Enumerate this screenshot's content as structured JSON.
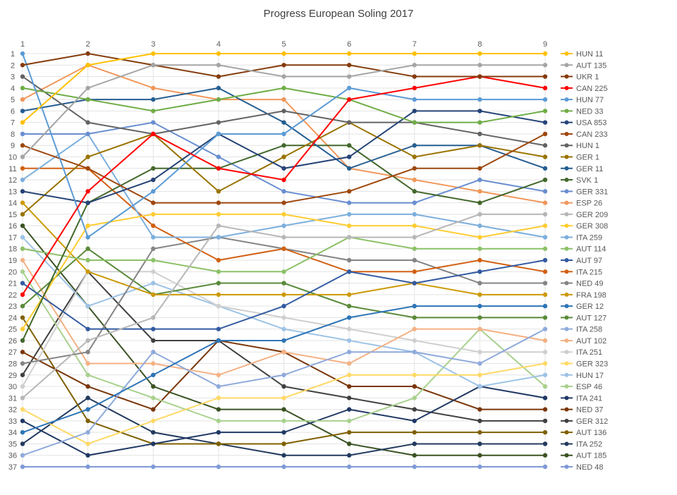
{
  "chart_data": {
    "type": "line",
    "title": "Progress European Soling 2017",
    "x": [
      1,
      2,
      3,
      4,
      5,
      6,
      7,
      8,
      9
    ],
    "ylim": [
      1,
      37
    ],
    "y_inverted": true,
    "y_ticks": [
      1,
      2,
      3,
      4,
      5,
      6,
      7,
      8,
      9,
      10,
      11,
      12,
      13,
      14,
      15,
      16,
      17,
      18,
      19,
      20,
      21,
      22,
      23,
      24,
      25,
      26,
      27,
      28,
      29,
      30,
      31,
      32,
      33,
      34,
      35,
      36,
      37
    ],
    "grid": true,
    "legend_position": "right",
    "series": [
      {
        "name": "HUN 11",
        "color": "#ffc000",
        "values": [
          7,
          2,
          1,
          1,
          1,
          1,
          1,
          1,
          1
        ]
      },
      {
        "name": "AUT 135",
        "color": "#a5a5a5",
        "values": [
          10,
          4,
          2,
          2,
          3,
          3,
          2,
          2,
          2
        ]
      },
      {
        "name": "UKR 1",
        "color": "#843c0c",
        "values": [
          2,
          1,
          2,
          3,
          2,
          2,
          3,
          3,
          3
        ]
      },
      {
        "name": "CAN 225",
        "color": "#ff0000",
        "values": [
          22,
          13,
          8,
          11,
          12,
          5,
          4,
          3,
          4
        ]
      },
      {
        "name": "HUN 77",
        "color": "#5b9bd5",
        "values": [
          1,
          17,
          13,
          8,
          8,
          4,
          5,
          5,
          5
        ]
      },
      {
        "name": "NED 33",
        "color": "#70ad47",
        "values": [
          4,
          5,
          6,
          5,
          4,
          5,
          7,
          7,
          6
        ]
      },
      {
        "name": "USA 853",
        "color": "#264478",
        "values": [
          13,
          14,
          12,
          8,
          11,
          10,
          6,
          6,
          7
        ]
      },
      {
        "name": "CAN 233",
        "color": "#9e480e",
        "values": [
          9,
          11,
          14,
          14,
          14,
          13,
          11,
          11,
          8
        ]
      },
      {
        "name": "HUN 1",
        "color": "#636363",
        "values": [
          3,
          7,
          8,
          7,
          6,
          7,
          7,
          8,
          9
        ]
      },
      {
        "name": "GER 1",
        "color": "#997300",
        "values": [
          15,
          10,
          8,
          13,
          10,
          7,
          10,
          9,
          10
        ]
      },
      {
        "name": "GER 11",
        "color": "#255e91",
        "values": [
          6,
          5,
          5,
          4,
          7,
          11,
          9,
          9,
          11
        ]
      },
      {
        "name": "SVK 1",
        "color": "#43682b",
        "values": [
          26,
          14,
          11,
          11,
          9,
          9,
          13,
          14,
          12
        ]
      },
      {
        "name": "GER 331",
        "color": "#698ed0",
        "values": [
          8,
          8,
          7,
          10,
          13,
          14,
          14,
          12,
          13
        ]
      },
      {
        "name": "ESP 26",
        "color": "#f1975a",
        "values": [
          5,
          2,
          4,
          5,
          5,
          11,
          12,
          13,
          14
        ]
      },
      {
        "name": "GER 209",
        "color": "#b7b7b7",
        "values": [
          31,
          26,
          24,
          16,
          17,
          17,
          17,
          15,
          15
        ]
      },
      {
        "name": "GER 308",
        "color": "#ffcd33",
        "values": [
          25,
          16,
          15,
          15,
          15,
          16,
          16,
          17,
          16
        ]
      },
      {
        "name": "ITA 259",
        "color": "#7cafdd",
        "values": [
          12,
          8,
          17,
          17,
          16,
          15,
          15,
          16,
          17
        ]
      },
      {
        "name": "AUT 114",
        "color": "#8cc168",
        "values": [
          18,
          19,
          19,
          20,
          20,
          17,
          18,
          18,
          18
        ]
      },
      {
        "name": "AUT 97",
        "color": "#335aa1",
        "values": [
          21,
          25,
          25,
          25,
          23,
          20,
          21,
          20,
          19
        ]
      },
      {
        "name": "ITA 215",
        "color": "#d26012",
        "values": [
          11,
          11,
          16,
          19,
          18,
          20,
          20,
          19,
          20
        ]
      },
      {
        "name": "NED 49",
        "color": "#848484",
        "values": [
          28,
          27,
          18,
          17,
          18,
          19,
          19,
          21,
          21
        ]
      },
      {
        "name": "FRA 198",
        "color": "#cc9a06",
        "values": [
          14,
          20,
          22,
          22,
          22,
          22,
          21,
          22,
          22
        ]
      },
      {
        "name": "GER 12",
        "color": "#2e75b6",
        "values": [
          34,
          32,
          29,
          26,
          26,
          24,
          23,
          23,
          23
        ]
      },
      {
        "name": "AUT 127",
        "color": "#5a8a39",
        "values": [
          23,
          18,
          22,
          21,
          21,
          23,
          24,
          24,
          24
        ]
      },
      {
        "name": "ITA 258",
        "color": "#8faadc",
        "values": [
          36,
          34,
          27,
          30,
          29,
          27,
          27,
          28,
          25
        ]
      },
      {
        "name": "AUT 102",
        "color": "#f4b183",
        "values": [
          19,
          28,
          28,
          29,
          27,
          28,
          25,
          25,
          26
        ]
      },
      {
        "name": "ITA 251",
        "color": "#cfcfcf",
        "values": [
          30,
          20,
          20,
          23,
          24,
          25,
          26,
          27,
          27
        ]
      },
      {
        "name": "GER 323",
        "color": "#ffd966",
        "values": [
          32,
          35,
          33,
          31,
          31,
          29,
          29,
          29,
          28
        ]
      },
      {
        "name": "HUN 17",
        "color": "#9dc3e6",
        "values": [
          17,
          23,
          21,
          23,
          25,
          26,
          27,
          30,
          29
        ]
      },
      {
        "name": "ESP 46",
        "color": "#a9d18e",
        "values": [
          20,
          29,
          31,
          33,
          33,
          33,
          31,
          25,
          30
        ]
      },
      {
        "name": "ITA 241",
        "color": "#203864",
        "values": [
          33,
          36,
          35,
          34,
          34,
          32,
          33,
          30,
          31
        ]
      },
      {
        "name": "NED 37",
        "color": "#7a3609",
        "values": [
          27,
          30,
          32,
          26,
          27,
          30,
          30,
          32,
          32
        ]
      },
      {
        "name": "GER 312",
        "color": "#404040",
        "values": [
          29,
          20,
          26,
          26,
          30,
          31,
          32,
          33,
          33
        ]
      },
      {
        "name": "AUT 136",
        "color": "#7f6000",
        "values": [
          24,
          33,
          35,
          35,
          35,
          34,
          34,
          34,
          34
        ]
      },
      {
        "name": "ITA 252",
        "color": "#223a5e",
        "values": [
          35,
          31,
          34,
          35,
          36,
          36,
          35,
          35,
          35
        ]
      },
      {
        "name": "AUT 185",
        "color": "#3b5323",
        "values": [
          16,
          23,
          30,
          32,
          32,
          35,
          36,
          36,
          36
        ]
      },
      {
        "name": "NED 48",
        "color": "#7f9ad6",
        "values": [
          37,
          37,
          37,
          37,
          37,
          37,
          37,
          37,
          37
        ]
      }
    ]
  }
}
